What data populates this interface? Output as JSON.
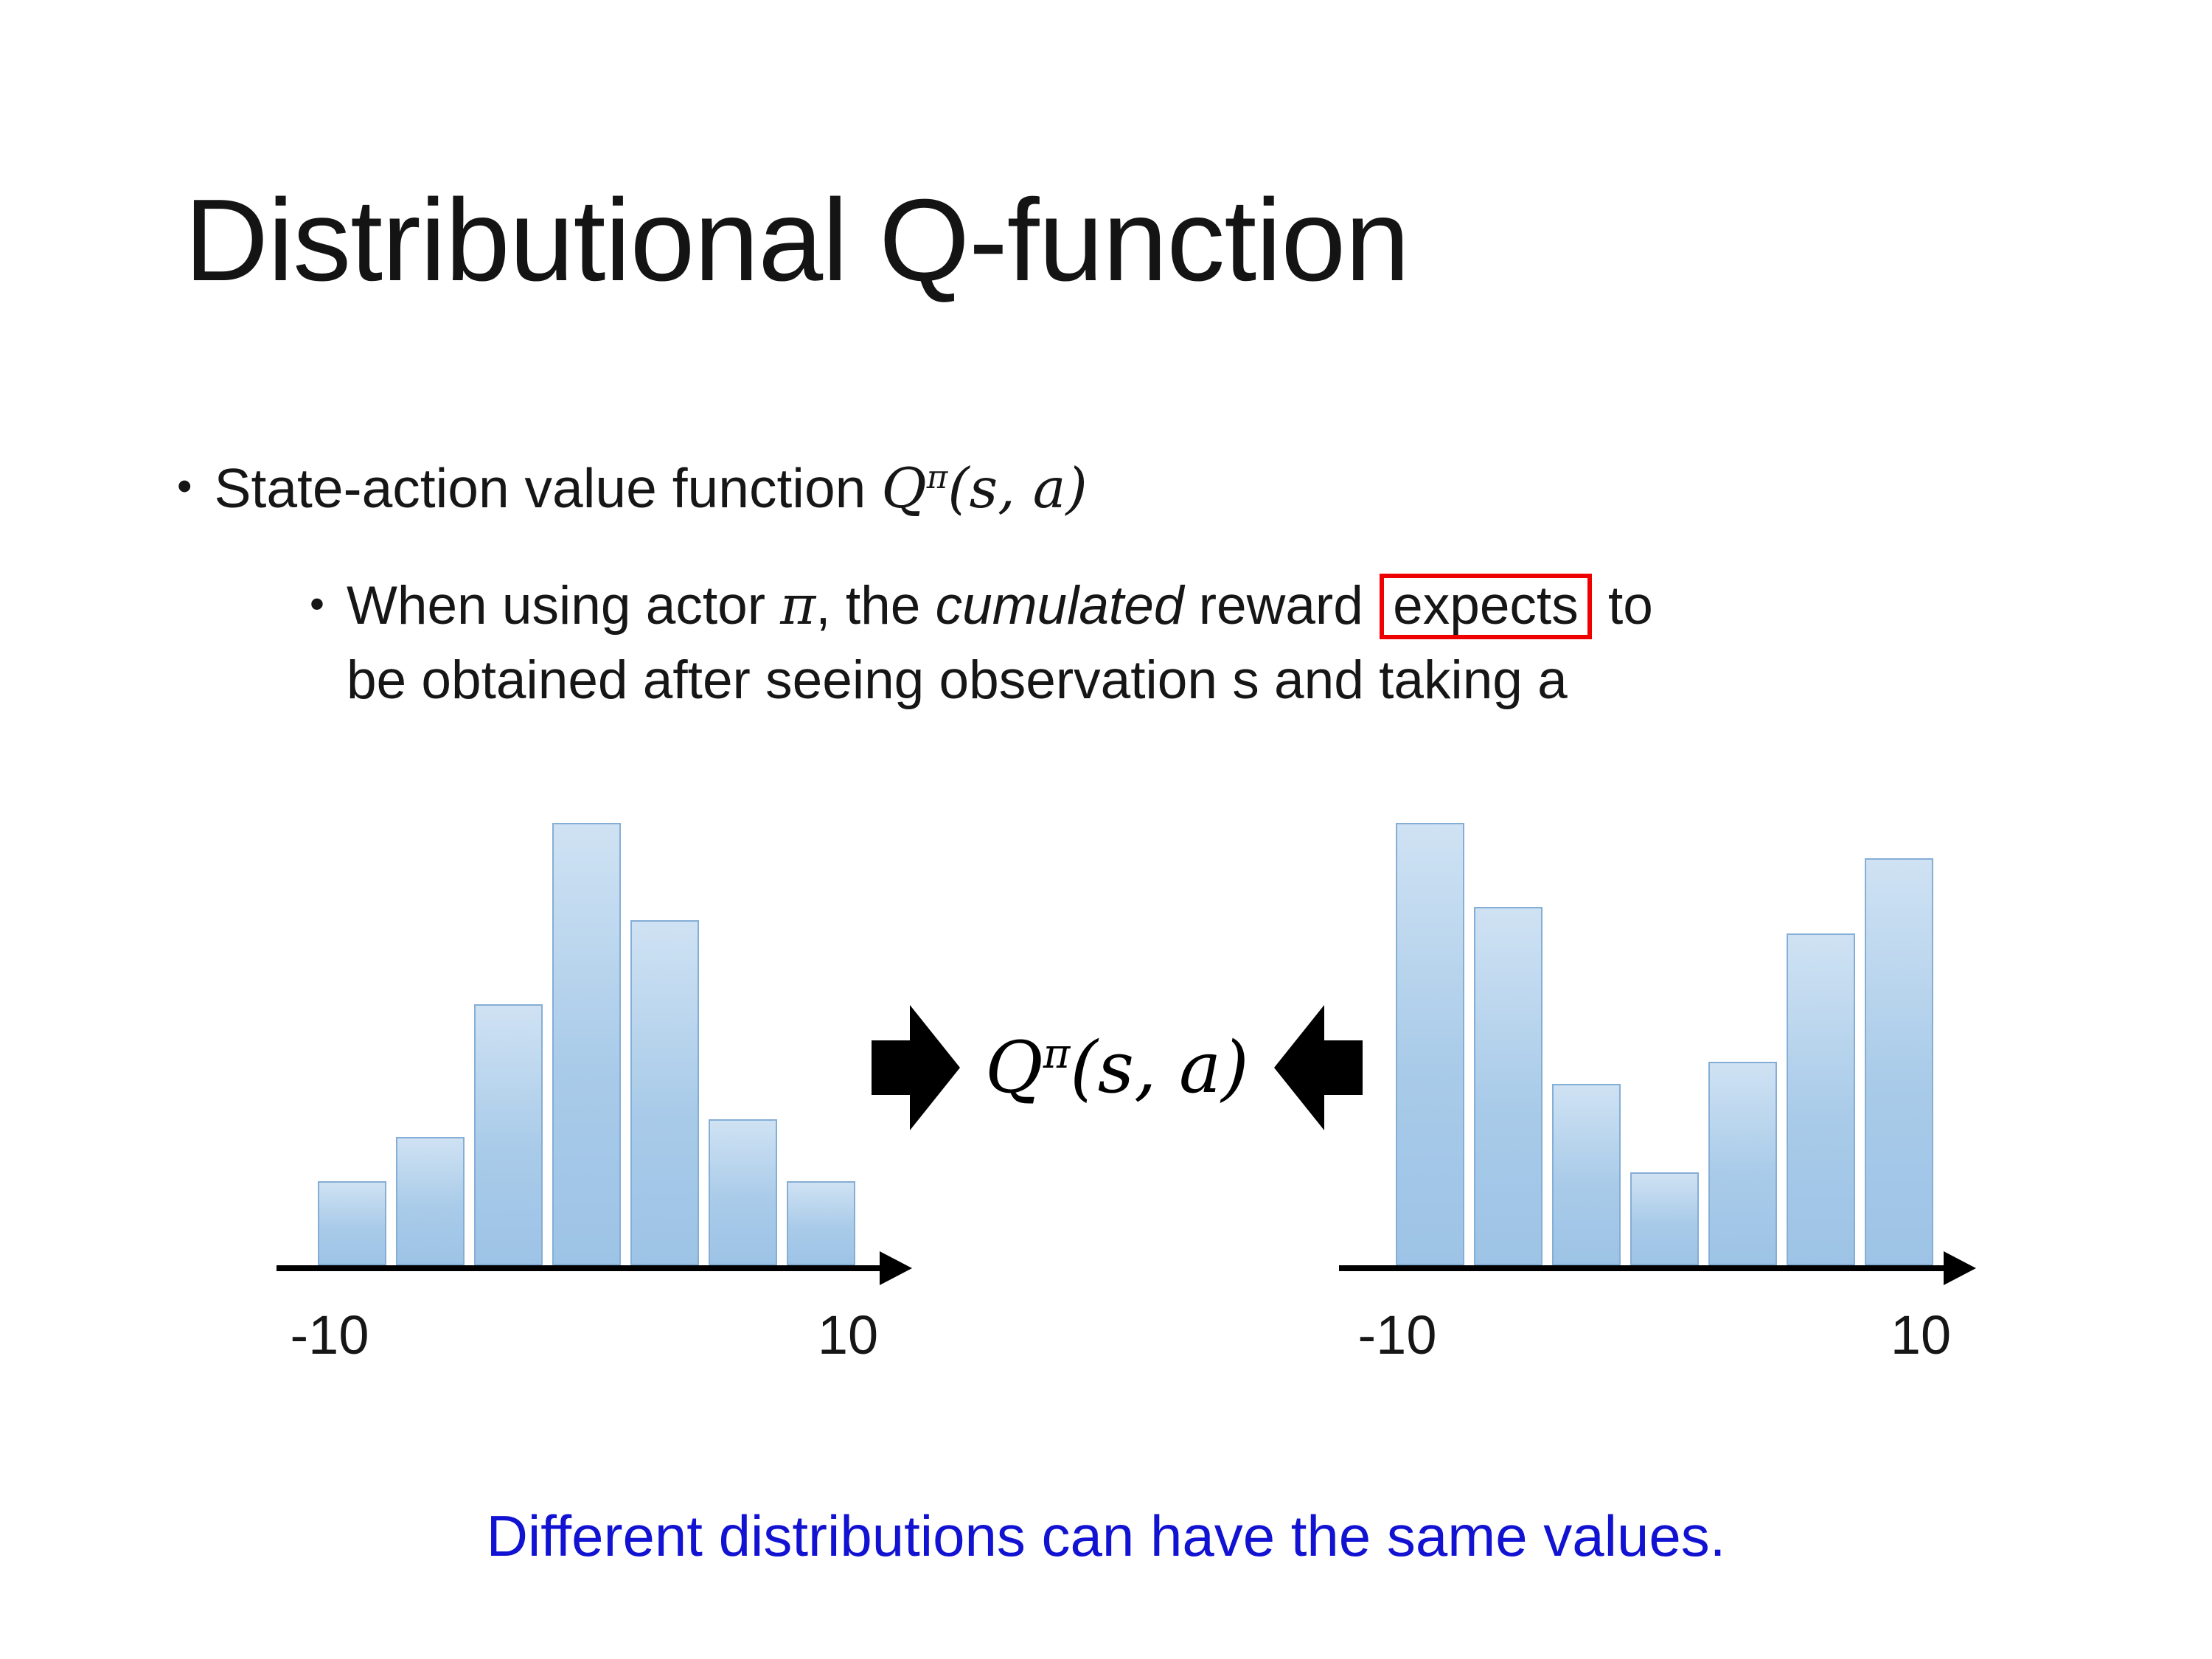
{
  "title": "Distributional Q-function",
  "bullets": {
    "marker": "•",
    "b1": {
      "text": "State-action value function ",
      "formula": {
        "Q": "Q",
        "sup": "π",
        "args": "(s, a)"
      }
    },
    "b2": {
      "part1": "When using actor ",
      "pi": "π",
      "part2": ", the ",
      "cumulated": "cumulated",
      "part3": " reward ",
      "expects": "expects",
      "part4": " to",
      "part5": "be obtained after seeing observation s and taking a"
    }
  },
  "center": {
    "formula": {
      "Q": "Q",
      "sup": "π",
      "args": "(s, a)"
    }
  },
  "note": {
    "text": "Different distributions can have the same values.",
    "color": "#1212d2"
  },
  "colors": {
    "bar_gradient_top": "#cfe2f3",
    "bar_gradient_bottom": "#9dc3e6",
    "bar_border": "#85aed6",
    "axis_black": "#000000",
    "highlight_red": "#ee0000",
    "note_blue": "#1212d2"
  },
  "chart_data": [
    {
      "type": "bar",
      "values": [
        0.19,
        0.29,
        0.59,
        1.0,
        0.78,
        0.33,
        0.19
      ],
      "x_tick_labels": [
        "-10",
        "10"
      ],
      "xlim": [
        -10,
        10
      ],
      "ylim": [
        0,
        1
      ],
      "title": "",
      "xlabel": "",
      "ylabel": "",
      "grid": false,
      "legend": false
    },
    {
      "type": "bar",
      "values": [
        1.0,
        0.81,
        0.41,
        0.21,
        0.46,
        0.75,
        0.92
      ],
      "x_tick_labels": [
        "-10",
        "10"
      ],
      "xlim": [
        -10,
        10
      ],
      "ylim": [
        0,
        1
      ],
      "title": "",
      "xlabel": "",
      "ylabel": "",
      "grid": false,
      "legend": false
    }
  ]
}
